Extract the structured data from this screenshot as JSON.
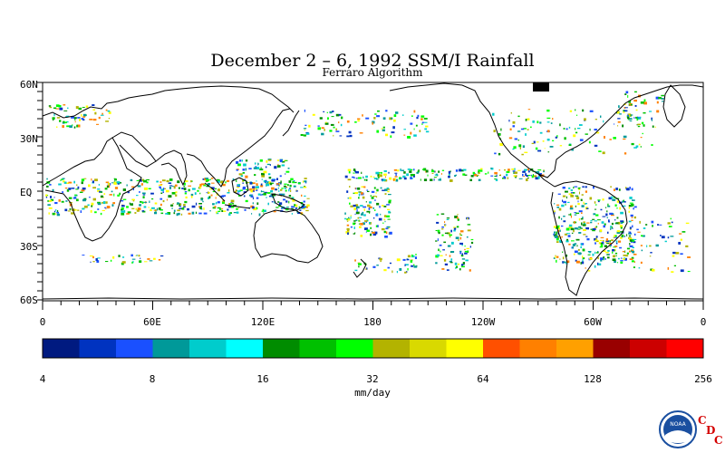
{
  "title": "December 2 – 6, 1992 SSM/I Rainfall",
  "subtitle": "Ferraro Algorithm",
  "map": {
    "lat_labels": [
      "60N",
      "30N",
      "EQ",
      "30S",
      "60S"
    ],
    "lon_labels": [
      "0",
      "60E",
      "120E",
      "180",
      "120W",
      "60W",
      "0"
    ]
  },
  "colorbar": {
    "colors": [
      "#001a80",
      "#0033c0",
      "#1a50ff",
      "#009999",
      "#00cccc",
      "#00ffff",
      "#008c00",
      "#00c000",
      "#00ff00",
      "#b3b300",
      "#d9d900",
      "#ffff00",
      "#ff5000",
      "#ff8000",
      "#ffa000",
      "#990000",
      "#cc0000",
      "#ff0000"
    ],
    "tick_labels": [
      "4",
      "8",
      "16",
      "32",
      "64",
      "128",
      "256"
    ],
    "unit": "mm/day"
  },
  "logo": {
    "noaa_text": "NOAA",
    "cdc_letters": [
      "C",
      "D",
      "C"
    ]
  }
}
